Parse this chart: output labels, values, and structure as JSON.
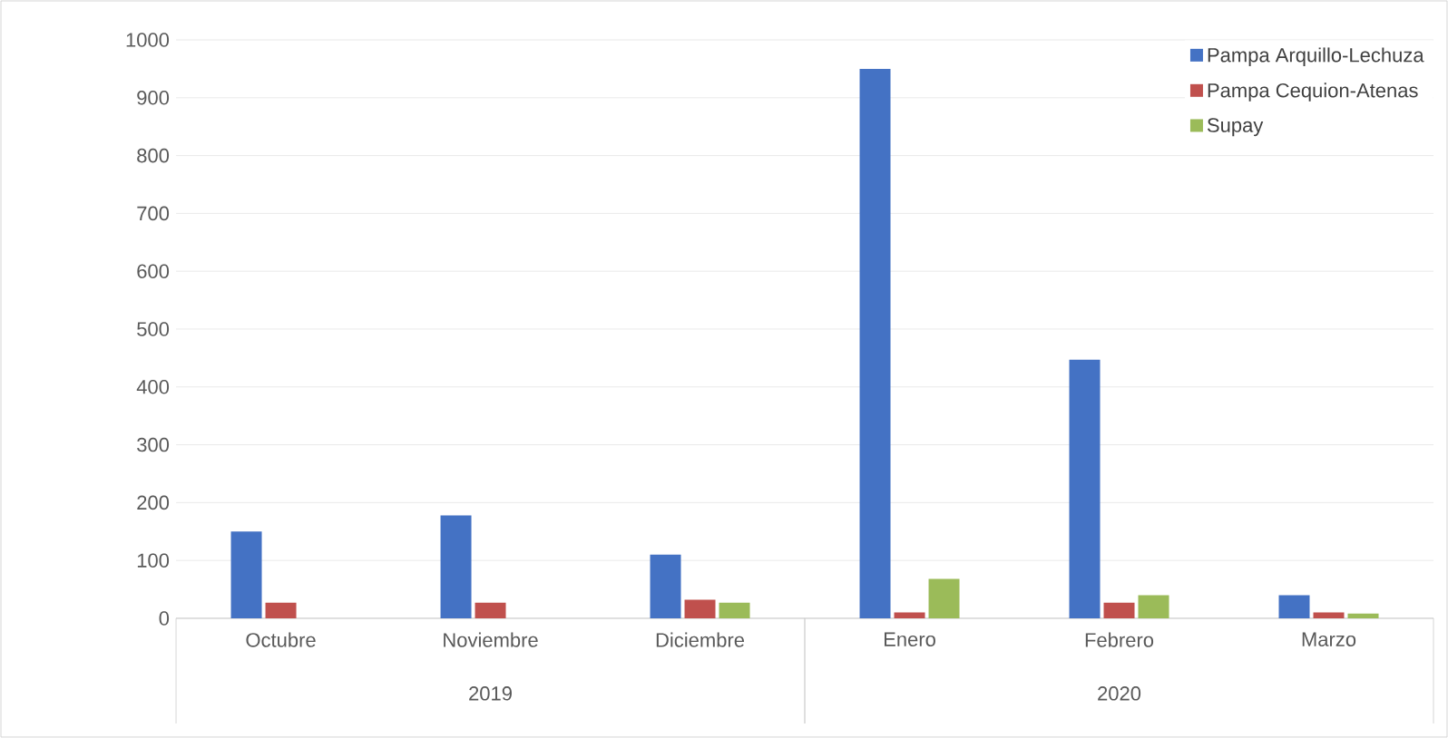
{
  "chart_data": {
    "type": "bar",
    "categories": [
      "Octubre",
      "Noviembre",
      "Diciembre",
      "Enero",
      "Febrero",
      "Marzo"
    ],
    "series": [
      {
        "name": "Pampa Arquillo-Lechuza",
        "color": "#4472c4",
        "values": [
          150,
          178,
          110,
          950,
          447,
          40
        ]
      },
      {
        "name": "Pampa Cequion-Atenas",
        "color": "#c0504d",
        "values": [
          27,
          27,
          32,
          10,
          27,
          10
        ]
      },
      {
        "name": "Supay",
        "color": "#9bbb59",
        "values": [
          null,
          null,
          27,
          68,
          40,
          8
        ]
      }
    ],
    "annotations": [
      "2019",
      "2020"
    ],
    "ylim": [
      0,
      1000
    ],
    "yticks": [
      0,
      100,
      200,
      300,
      400,
      500,
      600,
      700,
      800,
      900,
      1000
    ],
    "grid": "y",
    "legend": "top right"
  }
}
